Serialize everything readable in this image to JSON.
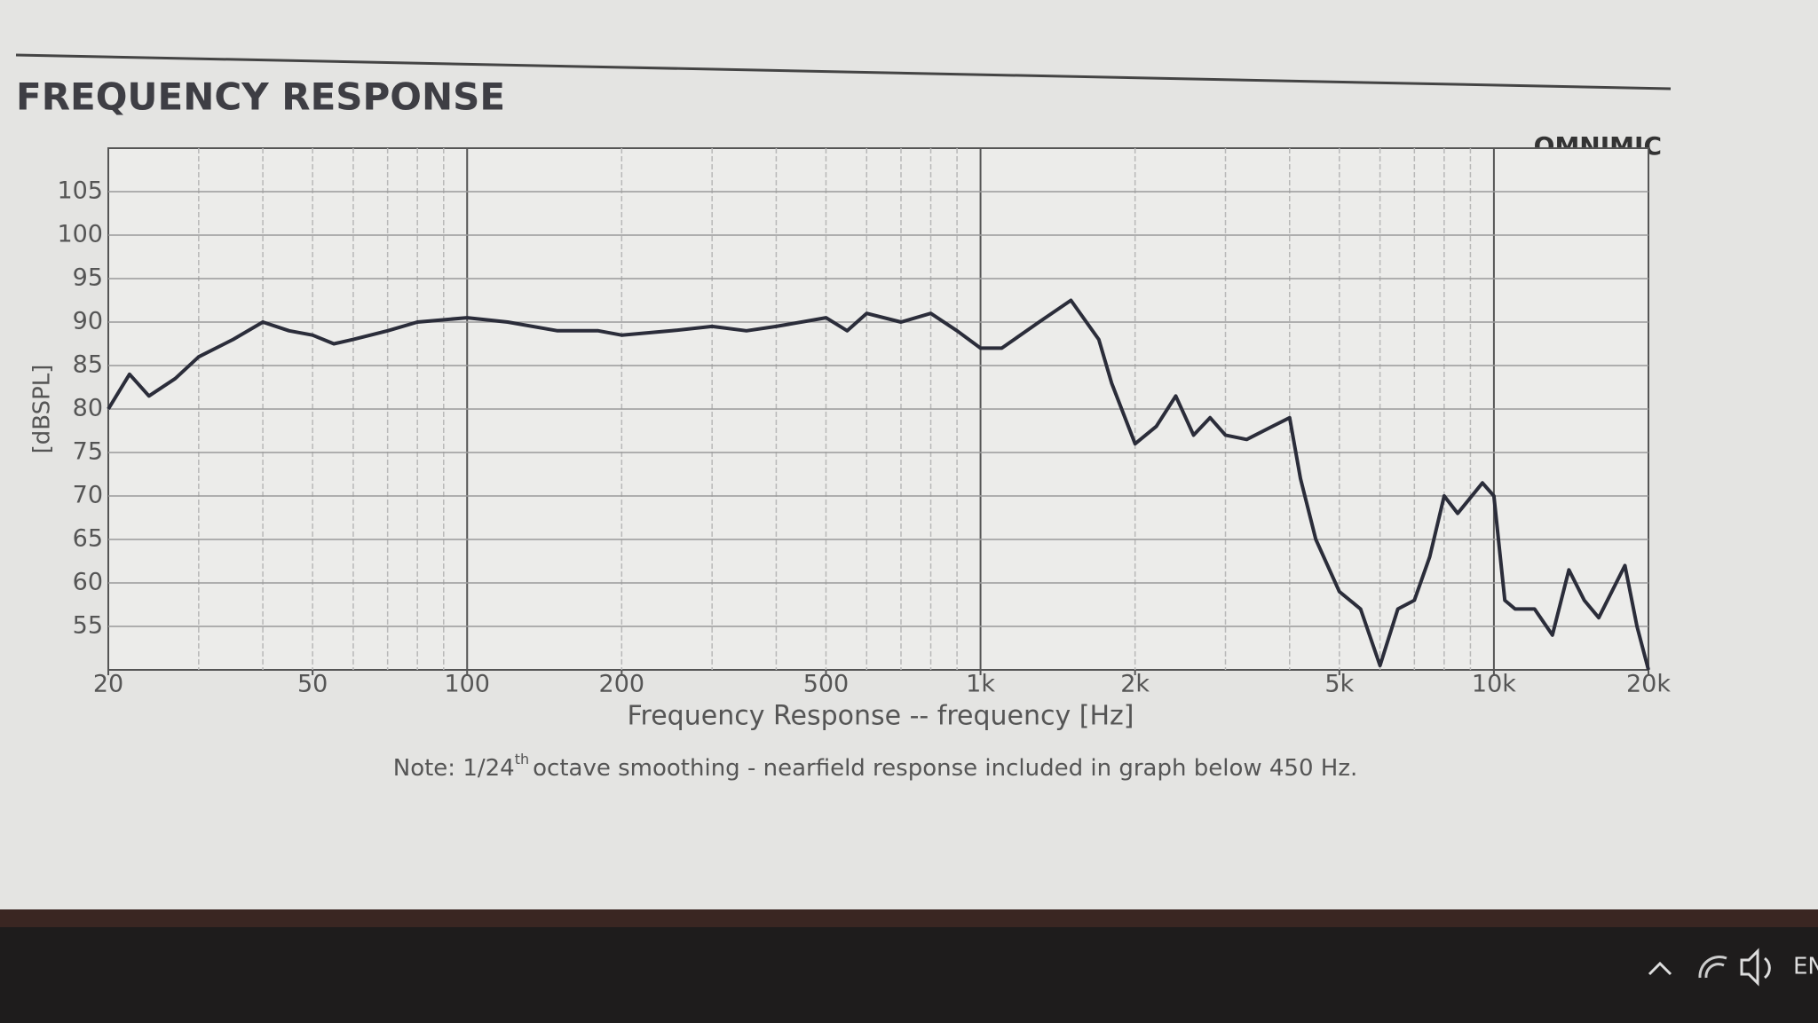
{
  "chart_data": {
    "type": "line",
    "title": "FREQUENCY RESPONSE",
    "brand": "OMNIMIC",
    "x_label": "Frequency Response -- frequency [Hz]",
    "y_label": "[dBSPL]",
    "note_prefix": "Note: 1/24",
    "note_sup": "th",
    "note_suffix": "octave smoothing - nearfield response included in graph below 450 Hz.",
    "x": [
      20,
      22,
      24,
      27,
      30,
      35,
      40,
      45,
      50,
      55,
      60,
      70,
      80,
      100,
      120,
      150,
      180,
      200,
      250,
      300,
      350,
      400,
      500,
      550,
      600,
      700,
      800,
      900,
      1000,
      1100,
      1300,
      1500,
      1700,
      1800,
      2000,
      2200,
      2400,
      2600,
      2800,
      3000,
      3300,
      3700,
      4000,
      4200,
      4500,
      5000,
      5500,
      6000,
      6500,
      7000,
      7500,
      8000,
      8500,
      9500,
      10000,
      10500,
      11000,
      12000,
      13000,
      14000,
      15000,
      16000,
      18000,
      19000,
      20000
    ],
    "series": [
      {
        "name": "Frequency Response",
        "color": "#2b2d3a",
        "values": [
          80,
          84,
          81.5,
          83.5,
          86,
          88,
          90,
          89,
          88.5,
          87.5,
          88,
          89,
          90,
          90.5,
          90,
          89,
          89,
          88.5,
          89,
          89.5,
          89,
          89.5,
          90.5,
          89,
          91,
          90,
          91,
          89,
          87,
          87,
          90,
          92.5,
          88,
          83,
          76,
          78,
          81.5,
          77,
          79,
          77,
          76.5,
          78,
          79,
          72,
          65,
          59,
          57,
          50.5,
          57,
          58,
          63,
          70,
          68,
          71.5,
          70,
          58,
          57,
          57,
          54,
          61.5,
          58,
          56,
          62,
          55,
          50
        ]
      }
    ],
    "xlim": [
      20,
      20000
    ],
    "log_x": true,
    "xticks": [
      20,
      50,
      100,
      200,
      500,
      {
        "value": 1000,
        "label": "1k"
      },
      {
        "value": 2000,
        "label": "2k"
      },
      {
        "value": 5000,
        "label": "5k"
      },
      {
        "value": 10000,
        "label": "10k"
      },
      {
        "value": 20000,
        "label": "20k"
      }
    ],
    "ylim": [
      50,
      110
    ],
    "yticks": [
      55,
      60,
      65,
      70,
      75,
      80,
      85,
      90,
      95,
      100,
      105
    ],
    "grid": true,
    "taskbar_lang": "EN"
  }
}
